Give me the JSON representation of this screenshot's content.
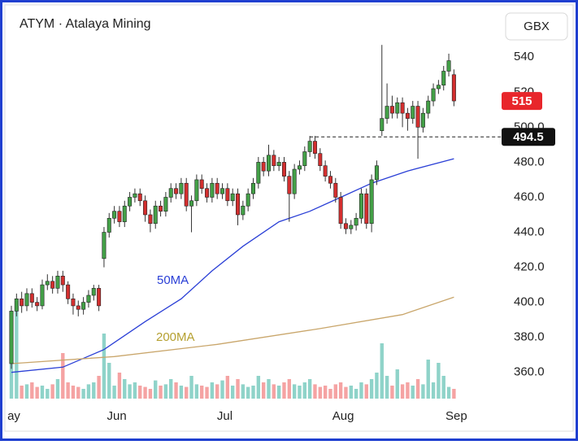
{
  "chart_data": {
    "type": "candlestick",
    "title": "ATYM · Atalaya Mining",
    "currency": "GBX",
    "up_color": "#43a047",
    "down_color": "#d32f2f",
    "up_volume_color": "#8fd3c9",
    "down_volume_color": "#f5a3a3",
    "candles": {
      "open": [
        365,
        395,
        402,
        398,
        405,
        400,
        398,
        410,
        412,
        408,
        415,
        410,
        402,
        398,
        396,
        400,
        404,
        408,
        425,
        440,
        448,
        452,
        446,
        455,
        460,
        462,
        458,
        450,
        445,
        455,
        452,
        460,
        465,
        462,
        468,
        455,
        458,
        470,
        465,
        460,
        468,
        462,
        465,
        458,
        462,
        450,
        455,
        462,
        468,
        480,
        475,
        484,
        478,
        480,
        472,
        462,
        476,
        478,
        486,
        492,
        485,
        478,
        472,
        468,
        460,
        445,
        442,
        444,
        448,
        462,
        445,
        470,
        498,
        505,
        512,
        508,
        514,
        508,
        505,
        512,
        500,
        508,
        515,
        522,
        524,
        532,
        530
      ],
      "high": [
        398,
        405,
        406,
        408,
        408,
        403,
        413,
        416,
        415,
        418,
        418,
        412,
        405,
        401,
        403,
        407,
        410,
        410,
        443,
        451,
        455,
        455,
        458,
        463,
        465,
        465,
        461,
        453,
        458,
        458,
        463,
        468,
        468,
        471,
        471,
        461,
        473,
        473,
        468,
        471,
        471,
        468,
        468,
        465,
        465,
        458,
        465,
        471,
        483,
        483,
        490,
        487,
        483,
        483,
        475,
        479,
        481,
        489,
        495,
        495,
        488,
        481,
        475,
        471,
        463,
        448,
        447,
        451,
        465,
        465,
        473,
        481,
        547,
        525,
        518,
        517,
        517,
        511,
        515,
        515,
        511,
        518,
        525,
        527,
        535,
        542,
        533
      ],
      "low": [
        362,
        392,
        394,
        395,
        397,
        395,
        396,
        407,
        405,
        405,
        406,
        399,
        393,
        392,
        393,
        397,
        401,
        395,
        420,
        437,
        445,
        443,
        443,
        452,
        457,
        455,
        446,
        440,
        442,
        449,
        449,
        457,
        459,
        459,
        452,
        440,
        455,
        462,
        457,
        457,
        459,
        459,
        455,
        455,
        444,
        447,
        452,
        459,
        465,
        472,
        472,
        475,
        475,
        469,
        446,
        459,
        473,
        475,
        483,
        482,
        475,
        469,
        465,
        457,
        442,
        439,
        439,
        441,
        445,
        442,
        440,
        467,
        495,
        502,
        505,
        505,
        500,
        498,
        502,
        482,
        497,
        505,
        512,
        519,
        521,
        529,
        512
      ],
      "close": [
        395,
        402,
        398,
        405,
        400,
        398,
        410,
        412,
        408,
        415,
        410,
        402,
        398,
        396,
        400,
        404,
        408,
        398,
        440,
        448,
        452,
        446,
        455,
        460,
        462,
        458,
        450,
        445,
        455,
        452,
        460,
        465,
        462,
        468,
        455,
        458,
        470,
        465,
        460,
        468,
        462,
        465,
        458,
        462,
        450,
        455,
        462,
        468,
        480,
        475,
        484,
        478,
        480,
        472,
        462,
        476,
        478,
        486,
        492,
        485,
        478,
        472,
        468,
        460,
        445,
        442,
        444,
        448,
        462,
        445,
        470,
        478,
        505,
        512,
        508,
        514,
        508,
        505,
        512,
        500,
        508,
        515,
        522,
        524,
        532,
        538,
        515
      ],
      "volume": [
        60,
        150,
        20,
        22,
        25,
        18,
        20,
        15,
        22,
        30,
        70,
        25,
        20,
        18,
        15,
        22,
        25,
        35,
        100,
        55,
        20,
        40,
        30,
        22,
        25,
        20,
        18,
        15,
        28,
        20,
        22,
        30,
        25,
        20,
        18,
        35,
        22,
        20,
        18,
        25,
        22,
        28,
        35,
        20,
        30,
        22,
        18,
        20,
        35,
        25,
        30,
        22,
        20,
        25,
        30,
        22,
        20,
        25,
        30,
        22,
        18,
        20,
        15,
        22,
        25,
        18,
        20,
        15,
        25,
        22,
        30,
        40,
        85,
        35,
        20,
        45,
        22,
        25,
        20,
        30,
        22,
        60,
        25,
        55,
        35,
        18,
        15
      ]
    },
    "series": [
      {
        "name": "50MA",
        "color": "#2a3fd6",
        "x": [
          0,
          10,
          18,
          26,
          33,
          39,
          45,
          52,
          58,
          64,
          70,
          77,
          86
        ],
        "values": [
          360,
          363,
          373,
          389,
          402,
          418,
          432,
          446,
          452,
          460,
          468,
          475,
          482
        ]
      },
      {
        "name": "200MA",
        "color": "#c9a66b",
        "x": [
          0,
          20,
          40,
          60,
          76,
          86
        ],
        "values": [
          365,
          369,
          376,
          385,
          393,
          403
        ]
      }
    ],
    "reference_line": 494.5,
    "ylim": [
      345,
      568
    ],
    "yticks": [
      {
        "value": 360,
        "label": "360.0"
      },
      {
        "value": 380,
        "label": "380.0"
      },
      {
        "value": 400,
        "label": "400.0"
      },
      {
        "value": 420,
        "label": "420.0"
      },
      {
        "value": 440,
        "label": "440.0"
      },
      {
        "value": 460,
        "label": "460.0"
      },
      {
        "value": 480,
        "label": "480.0"
      },
      {
        "value": 500,
        "label": "500.0"
      },
      520,
      540
    ],
    "xticks": [
      {
        "value": 0,
        "label": "ay"
      },
      {
        "value": 20,
        "label": "Jun"
      },
      {
        "value": 41,
        "label": "Jul"
      },
      {
        "value": 64,
        "label": "Aug"
      },
      {
        "value": 86,
        "label": "Sep"
      }
    ],
    "grid": false
  }
}
